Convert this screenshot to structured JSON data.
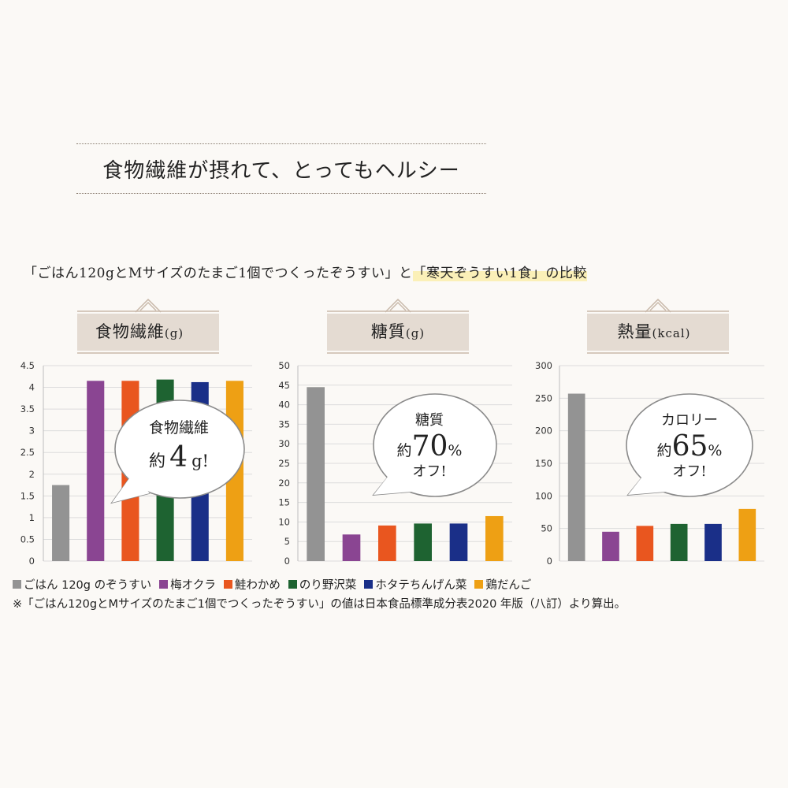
{
  "headline": "食物繊維が摂れて、とってもヘルシー",
  "comparison": {
    "part1": "「ごはん120gとMサイズのたまご1個でつくったぞうすい」と",
    "part2": "「寒天ぞうすい1食」の比較"
  },
  "colors": {
    "series": [
      "#939393",
      "#8a4592",
      "#e9561f",
      "#1e6331",
      "#1a2f88",
      "#eea014"
    ],
    "grid": "#dcdcdc",
    "banner": "#e4dbd2",
    "banner_line": "#c9b9aa"
  },
  "chart_data": [
    {
      "type": "bar",
      "title": "食物繊維",
      "unit": "(g)",
      "ylim": [
        0,
        4.5
      ],
      "ticks": [
        "4.5",
        "4",
        "3.5",
        "3",
        "2.5",
        "2",
        "1.5",
        "1",
        "0.5",
        "0"
      ],
      "categories": [
        "ごはん 120g のぞうすい",
        "梅オクラ",
        "鮭わかめ",
        "のり野沢菜",
        "ホタテちんげん菜",
        "鶏だんご"
      ],
      "values": [
        1.75,
        4.15,
        4.15,
        4.18,
        4.12,
        4.15
      ],
      "grid": true,
      "callout": {
        "line1": "食物繊維",
        "prefix": "約",
        "big": "4",
        "suffix": "g!"
      }
    },
    {
      "type": "bar",
      "title": "糖質",
      "unit": "(g)",
      "ylim": [
        0,
        50
      ],
      "ticks": [
        "50",
        "45",
        "40",
        "35",
        "30",
        "25",
        "20",
        "15",
        "10",
        "5",
        "0"
      ],
      "categories": [
        "ごはん 120g のぞうすい",
        "梅オクラ",
        "鮭わかめ",
        "のり野沢菜",
        "ホタテちんげん菜",
        "鶏だんご"
      ],
      "values": [
        44.5,
        6.8,
        9.1,
        9.6,
        9.6,
        11.5
      ],
      "grid": true,
      "callout": {
        "line1": "糖質",
        "prefix": "約",
        "big": "70",
        "suffix": "%",
        "line3": "オフ!"
      }
    },
    {
      "type": "bar",
      "title": "熱量",
      "unit": "(kcal)",
      "ylim": [
        0,
        300
      ],
      "ticks": [
        "300",
        "250",
        "200",
        "150",
        "100",
        "50",
        "0"
      ],
      "categories": [
        "ごはん 120g のぞうすい",
        "梅オクラ",
        "鮭わかめ",
        "のり野沢菜",
        "ホタテちんげん菜",
        "鶏だんご"
      ],
      "values": [
        257,
        45,
        54,
        57,
        57,
        80
      ],
      "grid": true,
      "callout": {
        "line1": "カロリー",
        "prefix": "約",
        "big": "65",
        "suffix": "%",
        "line3": "オフ!"
      }
    }
  ],
  "legend": [
    "ごはん 120g のぞうすい",
    "梅オクラ",
    "鮭わかめ",
    "のり野沢菜",
    "ホタテちんげん菜",
    "鶏だんご"
  ],
  "footnote": "※「ごはん120gとMサイズのたまご1個でつくったぞうすい」の値は日本食品標準成分表2020 年版（八訂）より算出。"
}
